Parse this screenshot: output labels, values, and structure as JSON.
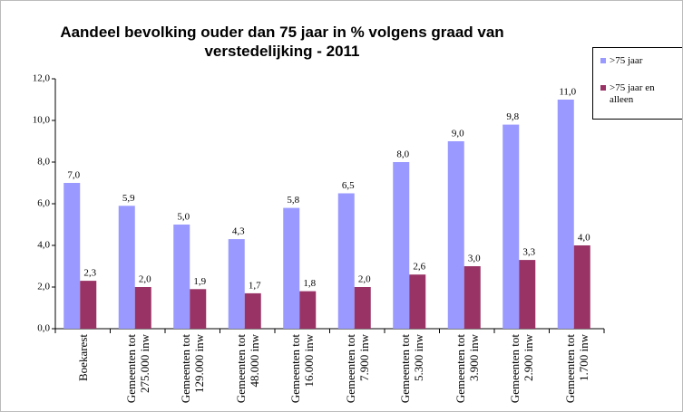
{
  "chart_data": {
    "type": "bar",
    "title": "Aandeel bevolking ouder dan 75 jaar in % volgens graad van verstedelijking - 2011",
    "categories": [
      "Boekarest",
      "Gemeenten tot 275.000 inw",
      "Gemeenten tot 129.000 inw",
      "Gemeenten tot 48.000 inw",
      "Gemeenten tot 16.000 inw",
      "Gemeenten tot 7.900 inw",
      "Gemeenten tot 5.300 inw",
      "Gemeenten tot 3.900 inw",
      "Gemeenten tot 2.900 inw",
      "Gemeenten tot 1.700 inw"
    ],
    "series": [
      {
        "name": ">75 jaar",
        "color": "#9999ff",
        "values": [
          7.0,
          5.9,
          5.0,
          4.3,
          5.8,
          6.5,
          8.0,
          9.0,
          9.8,
          11.0
        ],
        "value_labels": [
          "7,0",
          "5,9",
          "5,0",
          "4,3",
          "5,8",
          "6,5",
          "8,0",
          "9,0",
          "9,8",
          "11,0"
        ]
      },
      {
        "name": ">75 jaar en alleen",
        "color": "#993366",
        "values": [
          2.3,
          2.0,
          1.9,
          1.7,
          1.8,
          2.0,
          2.6,
          3.0,
          3.3,
          4.0
        ],
        "value_labels": [
          "2,3",
          "2,0",
          "1,9",
          "1,7",
          "1,8",
          "2,0",
          "2,6",
          "3,0",
          "3,3",
          "4,0"
        ]
      }
    ],
    "ylim": [
      0,
      12
    ],
    "yticks": [
      {
        "value": 0,
        "label": "0,0"
      },
      {
        "value": 2,
        "label": "2,0"
      },
      {
        "value": 4,
        "label": "4,0"
      },
      {
        "value": 6,
        "label": "6,0"
      },
      {
        "value": 8,
        "label": "8,0"
      },
      {
        "value": 10,
        "label": "10,0"
      },
      {
        "value": 12,
        "label": "12,0"
      }
    ],
    "legend": "right"
  }
}
